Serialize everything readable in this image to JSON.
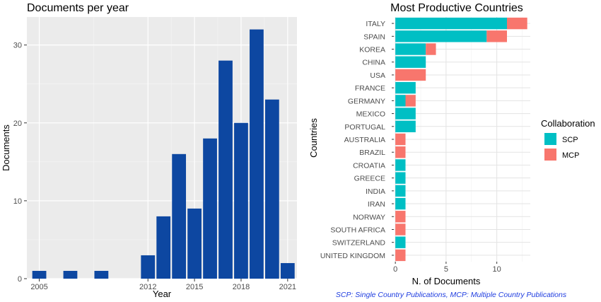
{
  "chart_data": [
    {
      "type": "bar",
      "title": "Documents per year",
      "xlabel": "Year",
      "ylabel": "Documents",
      "x": [
        2005,
        2007,
        2009,
        2012,
        2013,
        2014,
        2015,
        2016,
        2017,
        2018,
        2019,
        2020,
        2021
      ],
      "values": [
        1,
        1,
        1,
        3,
        8,
        16,
        9,
        18,
        28,
        20,
        32,
        23,
        2
      ],
      "x_ticks": [
        2005,
        2012,
        2015,
        2018,
        2021
      ],
      "y_ticks": [
        0,
        10,
        20,
        30
      ],
      "xlim": [
        2004.2,
        2021.6
      ],
      "ylim": [
        0,
        33.6
      ],
      "bar_color": "#0d47a1",
      "panel_color": "#ebebeb",
      "grid": true
    },
    {
      "type": "bar",
      "orientation": "horizontal",
      "stacked": true,
      "title": "Most Productive Countries",
      "xlabel": "N. of Documents",
      "ylabel": "Countries",
      "categories": [
        "ITALY",
        "SPAIN",
        "KOREA",
        "CHINA",
        "USA",
        "FRANCE",
        "GERMANY",
        "MEXICO",
        "PORTUGAL",
        "AUSTRALIA",
        "BRAZIL",
        "CROATIA",
        "GREECE",
        "INDIA",
        "IRAN",
        "NORWAY",
        "SOUTH AFRICA",
        "SWITZERLAND",
        "UNITED KINGDOM"
      ],
      "series": [
        {
          "name": "SCP",
          "color": "#00bfc4",
          "values": [
            11,
            9,
            3,
            3,
            0,
            2,
            1,
            2,
            2,
            0,
            0,
            1,
            1,
            1,
            1,
            0,
            0,
            1,
            0
          ]
        },
        {
          "name": "MCP",
          "color": "#f8766d",
          "values": [
            2,
            2,
            1,
            0,
            3,
            0,
            1,
            0,
            0,
            1,
            1,
            0,
            0,
            0,
            0,
            1,
            1,
            0,
            1
          ]
        }
      ],
      "x_ticks": [
        0,
        5,
        10
      ],
      "xlim": [
        -0.15,
        13.3
      ],
      "legend_title": "Collaboration",
      "legend_position": "right",
      "grid": true,
      "footnote": "SCP: Single Country Publications, MCP: Multiple Country Publications"
    }
  ]
}
